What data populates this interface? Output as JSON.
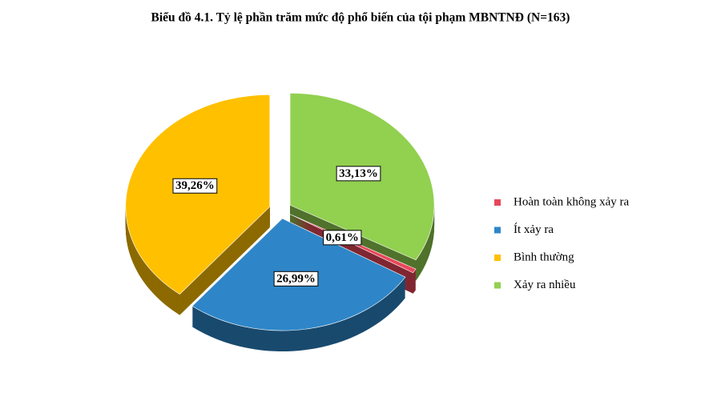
{
  "chart_data": {
    "type": "pie",
    "title": "Biểu đồ 4.1. Tỷ lệ phần trăm mức độ phổ biến của tội phạm MBNTNĐ (N=163)",
    "categories": [
      "Hoàn toàn không xảy ra",
      "Ít xảy ra",
      "Bình thường",
      "Xảy ra nhiều"
    ],
    "values": [
      0.61,
      26.99,
      39.26,
      33.13
    ],
    "value_labels": [
      "0,61%",
      "26,99%",
      "39,26%",
      "33,13%"
    ],
    "colors": [
      "#e8475a",
      "#2e86c8",
      "#ffc000",
      "#92d050"
    ],
    "legend": "right"
  }
}
